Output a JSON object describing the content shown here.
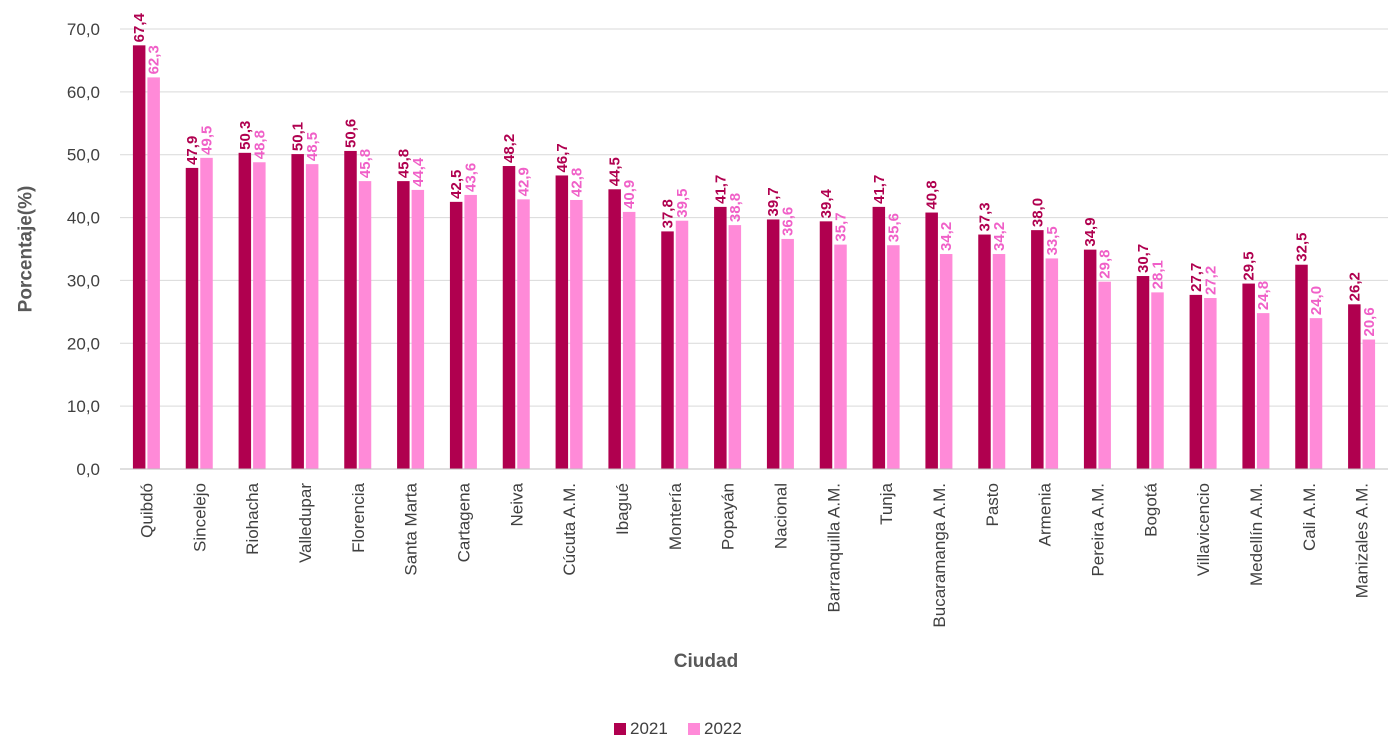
{
  "chart_data": {
    "type": "bar",
    "xlabel": "Ciudad",
    "ylabel": "Porcentaje(%)",
    "ylim": [
      0,
      70
    ],
    "ytick_step": 10,
    "ytick_labels": [
      "0,0",
      "10,0",
      "20,0",
      "30,0",
      "40,0",
      "50,0",
      "60,0",
      "70,0"
    ],
    "grid": true,
    "legend_position": "bottom",
    "categories": [
      "Quibdó",
      "Sincelejo",
      "Riohacha",
      "Valledupar",
      "Florencia",
      "Santa Marta",
      "Cartagena",
      "Neiva",
      "Cúcuta A.M.",
      "Ibagué",
      "Montería",
      "Popayán",
      "Nacional",
      "Barranquilla A.M.",
      "Tunja",
      "Bucaramanga A.M.",
      "Pasto",
      "Armenia",
      "Pereira A.M.",
      "Bogotá",
      "Villavicencio",
      "Medellín A.M.",
      "Cali A.M.",
      "Manizales A.M."
    ],
    "series": [
      {
        "name": "2021",
        "color": "#B0004F",
        "values": [
          67.4,
          47.9,
          50.3,
          50.1,
          50.6,
          45.8,
          42.5,
          48.2,
          46.7,
          44.5,
          37.8,
          41.7,
          39.7,
          39.4,
          41.7,
          40.8,
          37.3,
          38.0,
          34.9,
          30.7,
          27.7,
          29.5,
          32.5,
          26.2
        ],
        "labels": [
          "67,4",
          "47,9",
          "50,3",
          "50,1",
          "50,6",
          "45,8",
          "42,5",
          "48,2",
          "46,7",
          "44,5",
          "37,8",
          "41,7",
          "39,7",
          "39,4",
          "41,7",
          "40,8",
          "37,3",
          "38,0",
          "34,9",
          "30,7",
          "27,7",
          "29,5",
          "32,5",
          "26,2"
        ]
      },
      {
        "name": "2022",
        "color": "#FF8AD8",
        "label_color": "#F060C8",
        "values": [
          62.3,
          49.5,
          48.8,
          48.5,
          45.8,
          44.4,
          43.6,
          42.9,
          42.8,
          40.9,
          39.5,
          38.8,
          36.6,
          35.7,
          35.6,
          34.2,
          34.2,
          33.5,
          29.8,
          28.1,
          27.2,
          24.8,
          24.0,
          20.6
        ],
        "labels": [
          "62,3",
          "49,5",
          "48,8",
          "48,5",
          "45,8",
          "44,4",
          "43,6",
          "42,9",
          "42,8",
          "40,9",
          "39,5",
          "38,8",
          "36,6",
          "35,7",
          "35,6",
          "34,2",
          "34,2",
          "33,5",
          "29,8",
          "28,1",
          "27,2",
          "24,8",
          "24,0",
          "20,6"
        ]
      }
    ]
  }
}
